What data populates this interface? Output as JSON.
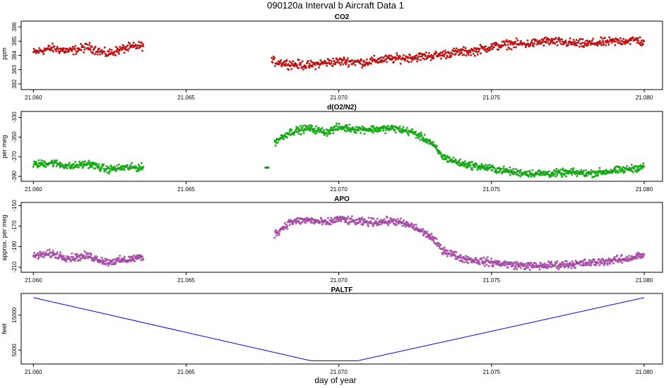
{
  "figure": {
    "title": "090120a   Interval b Aircraft Data 1",
    "xlabel": "day of year"
  },
  "chart_data": [
    {
      "type": "scatter",
      "title": "CO2",
      "ylabel": "ppm",
      "xlim": [
        21.0596,
        21.0806
      ],
      "ylim": [
        381.6,
        386.4
      ],
      "xticks": [
        21.06,
        21.065,
        21.07,
        21.075,
        21.08
      ],
      "xtick_labels": [
        "21.060",
        "21.065",
        "21.070",
        "21.075",
        "21.080"
      ],
      "yticks": [
        382,
        383,
        384,
        385,
        386
      ],
      "ytick_labels": [
        "382",
        "383",
        "384",
        "385",
        "386"
      ],
      "color": "#ff0000",
      "grid": false,
      "segments": [
        {
          "x": [
            21.06,
            21.0606,
            21.0612,
            21.0618,
            21.0624,
            21.063,
            21.0636
          ],
          "y": [
            384.2,
            384.5,
            384.3,
            384.6,
            384.1,
            384.5,
            384.7
          ]
        },
        {
          "x": [
            21.0678,
            21.0684,
            21.069,
            21.0696,
            21.0702,
            21.0708,
            21.0714,
            21.072,
            21.0726,
            21.0732,
            21.0738,
            21.0744,
            21.075,
            21.0756,
            21.0762,
            21.0768,
            21.0774,
            21.078,
            21.0786,
            21.0792,
            21.0798,
            21.08
          ],
          "y": [
            383.6,
            383.4,
            383.3,
            383.5,
            383.6,
            383.5,
            383.7,
            383.8,
            383.9,
            384.0,
            384.2,
            384.3,
            384.6,
            384.8,
            384.8,
            385.0,
            384.9,
            384.8,
            384.9,
            385.0,
            385.1,
            384.8
          ]
        }
      ]
    },
    {
      "type": "scatter",
      "title": "d(O2/N2)",
      "ylabel": "per meg",
      "xlim": [
        21.0596,
        21.0806
      ],
      "ylim": [
        -395,
        -324
      ],
      "xticks": [
        21.06,
        21.065,
        21.07,
        21.075,
        21.08
      ],
      "xtick_labels": [
        "21.060",
        "21.065",
        "21.070",
        "21.075",
        "21.080"
      ],
      "yticks": [
        -390,
        -370,
        -350,
        -330
      ],
      "ytick_labels": [
        "-390",
        "-370",
        "-350",
        "-330"
      ],
      "color": "#00e000",
      "grid": false,
      "segments": [
        {
          "x": [
            21.06,
            21.0606,
            21.0612,
            21.0618,
            21.0624,
            21.063,
            21.0636
          ],
          "y": [
            -378,
            -376,
            -380,
            -377,
            -383,
            -381,
            -381
          ]
        },
        {
          "x": [
            21.0676,
            21.0677
          ],
          "y": [
            -381,
            -381
          ]
        },
        {
          "x": [
            21.0679,
            21.0684,
            21.069,
            21.0696,
            21.07,
            21.0706,
            21.0712,
            21.0718,
            21.0724,
            21.073,
            21.0734,
            21.074,
            21.0746,
            21.0752,
            21.0758,
            21.0764,
            21.077,
            21.0776,
            21.0782,
            21.0788,
            21.0794,
            21.08
          ],
          "y": [
            -355,
            -345,
            -341,
            -345,
            -340,
            -342,
            -342,
            -341,
            -345,
            -355,
            -370,
            -377,
            -380,
            -383,
            -386,
            -387,
            -387,
            -386,
            -387,
            -385,
            -383,
            -380
          ]
        }
      ]
    },
    {
      "type": "scatter",
      "title": "APO",
      "ylabel": "approx. per meg",
      "xlim": [
        21.0596,
        21.0806
      ],
      "ylim": [
        -215,
        -147
      ],
      "xticks": [
        21.06,
        21.065,
        21.07,
        21.075,
        21.08
      ],
      "xtick_labels": [
        "21.060",
        "21.065",
        "21.070",
        "21.075",
        "21.080"
      ],
      "yticks": [
        -210,
        -190,
        -170,
        -150
      ],
      "ytick_labels": [
        "-210",
        "-190",
        "-170",
        "-150"
      ],
      "color": "#dd55dd",
      "grid": false,
      "segments": [
        {
          "x": [
            21.06,
            21.0606,
            21.0612,
            21.0618,
            21.0624,
            21.063,
            21.0636
          ],
          "y": [
            -199,
            -197,
            -201,
            -199,
            -205,
            -203,
            -200
          ]
        },
        {
          "x": [
            21.0679,
            21.0684,
            21.069,
            21.0696,
            21.07,
            21.0706,
            21.0712,
            21.0718,
            21.0724,
            21.073,
            21.0734,
            21.074,
            21.0746,
            21.0752,
            21.0758,
            21.0764,
            21.077,
            21.0776,
            21.0782,
            21.0788,
            21.0794,
            21.08
          ],
          "y": [
            -178,
            -166,
            -164,
            -167,
            -163,
            -166,
            -166,
            -165,
            -170,
            -180,
            -193,
            -201,
            -204,
            -206,
            -208,
            -209,
            -208,
            -207,
            -206,
            -204,
            -202,
            -198
          ]
        }
      ]
    },
    {
      "type": "line",
      "title": "PALTF",
      "ylabel": "feet",
      "xlim": [
        21.0596,
        21.0806
      ],
      "ylim": [
        1000,
        21200
      ],
      "xticks": [
        21.06,
        21.065,
        21.07,
        21.075,
        21.08
      ],
      "xtick_labels": [
        "21.060",
        "21.065",
        "21.070",
        "21.075",
        "21.080"
      ],
      "yticks": [
        5000,
        15000
      ],
      "ytick_labels": [
        "5000",
        "15000"
      ],
      "color": "#0000ff",
      "grid": false,
      "x": [
        21.06,
        21.0691,
        21.0706,
        21.08
      ],
      "y": [
        20000,
        1900,
        1900,
        20000
      ]
    }
  ]
}
